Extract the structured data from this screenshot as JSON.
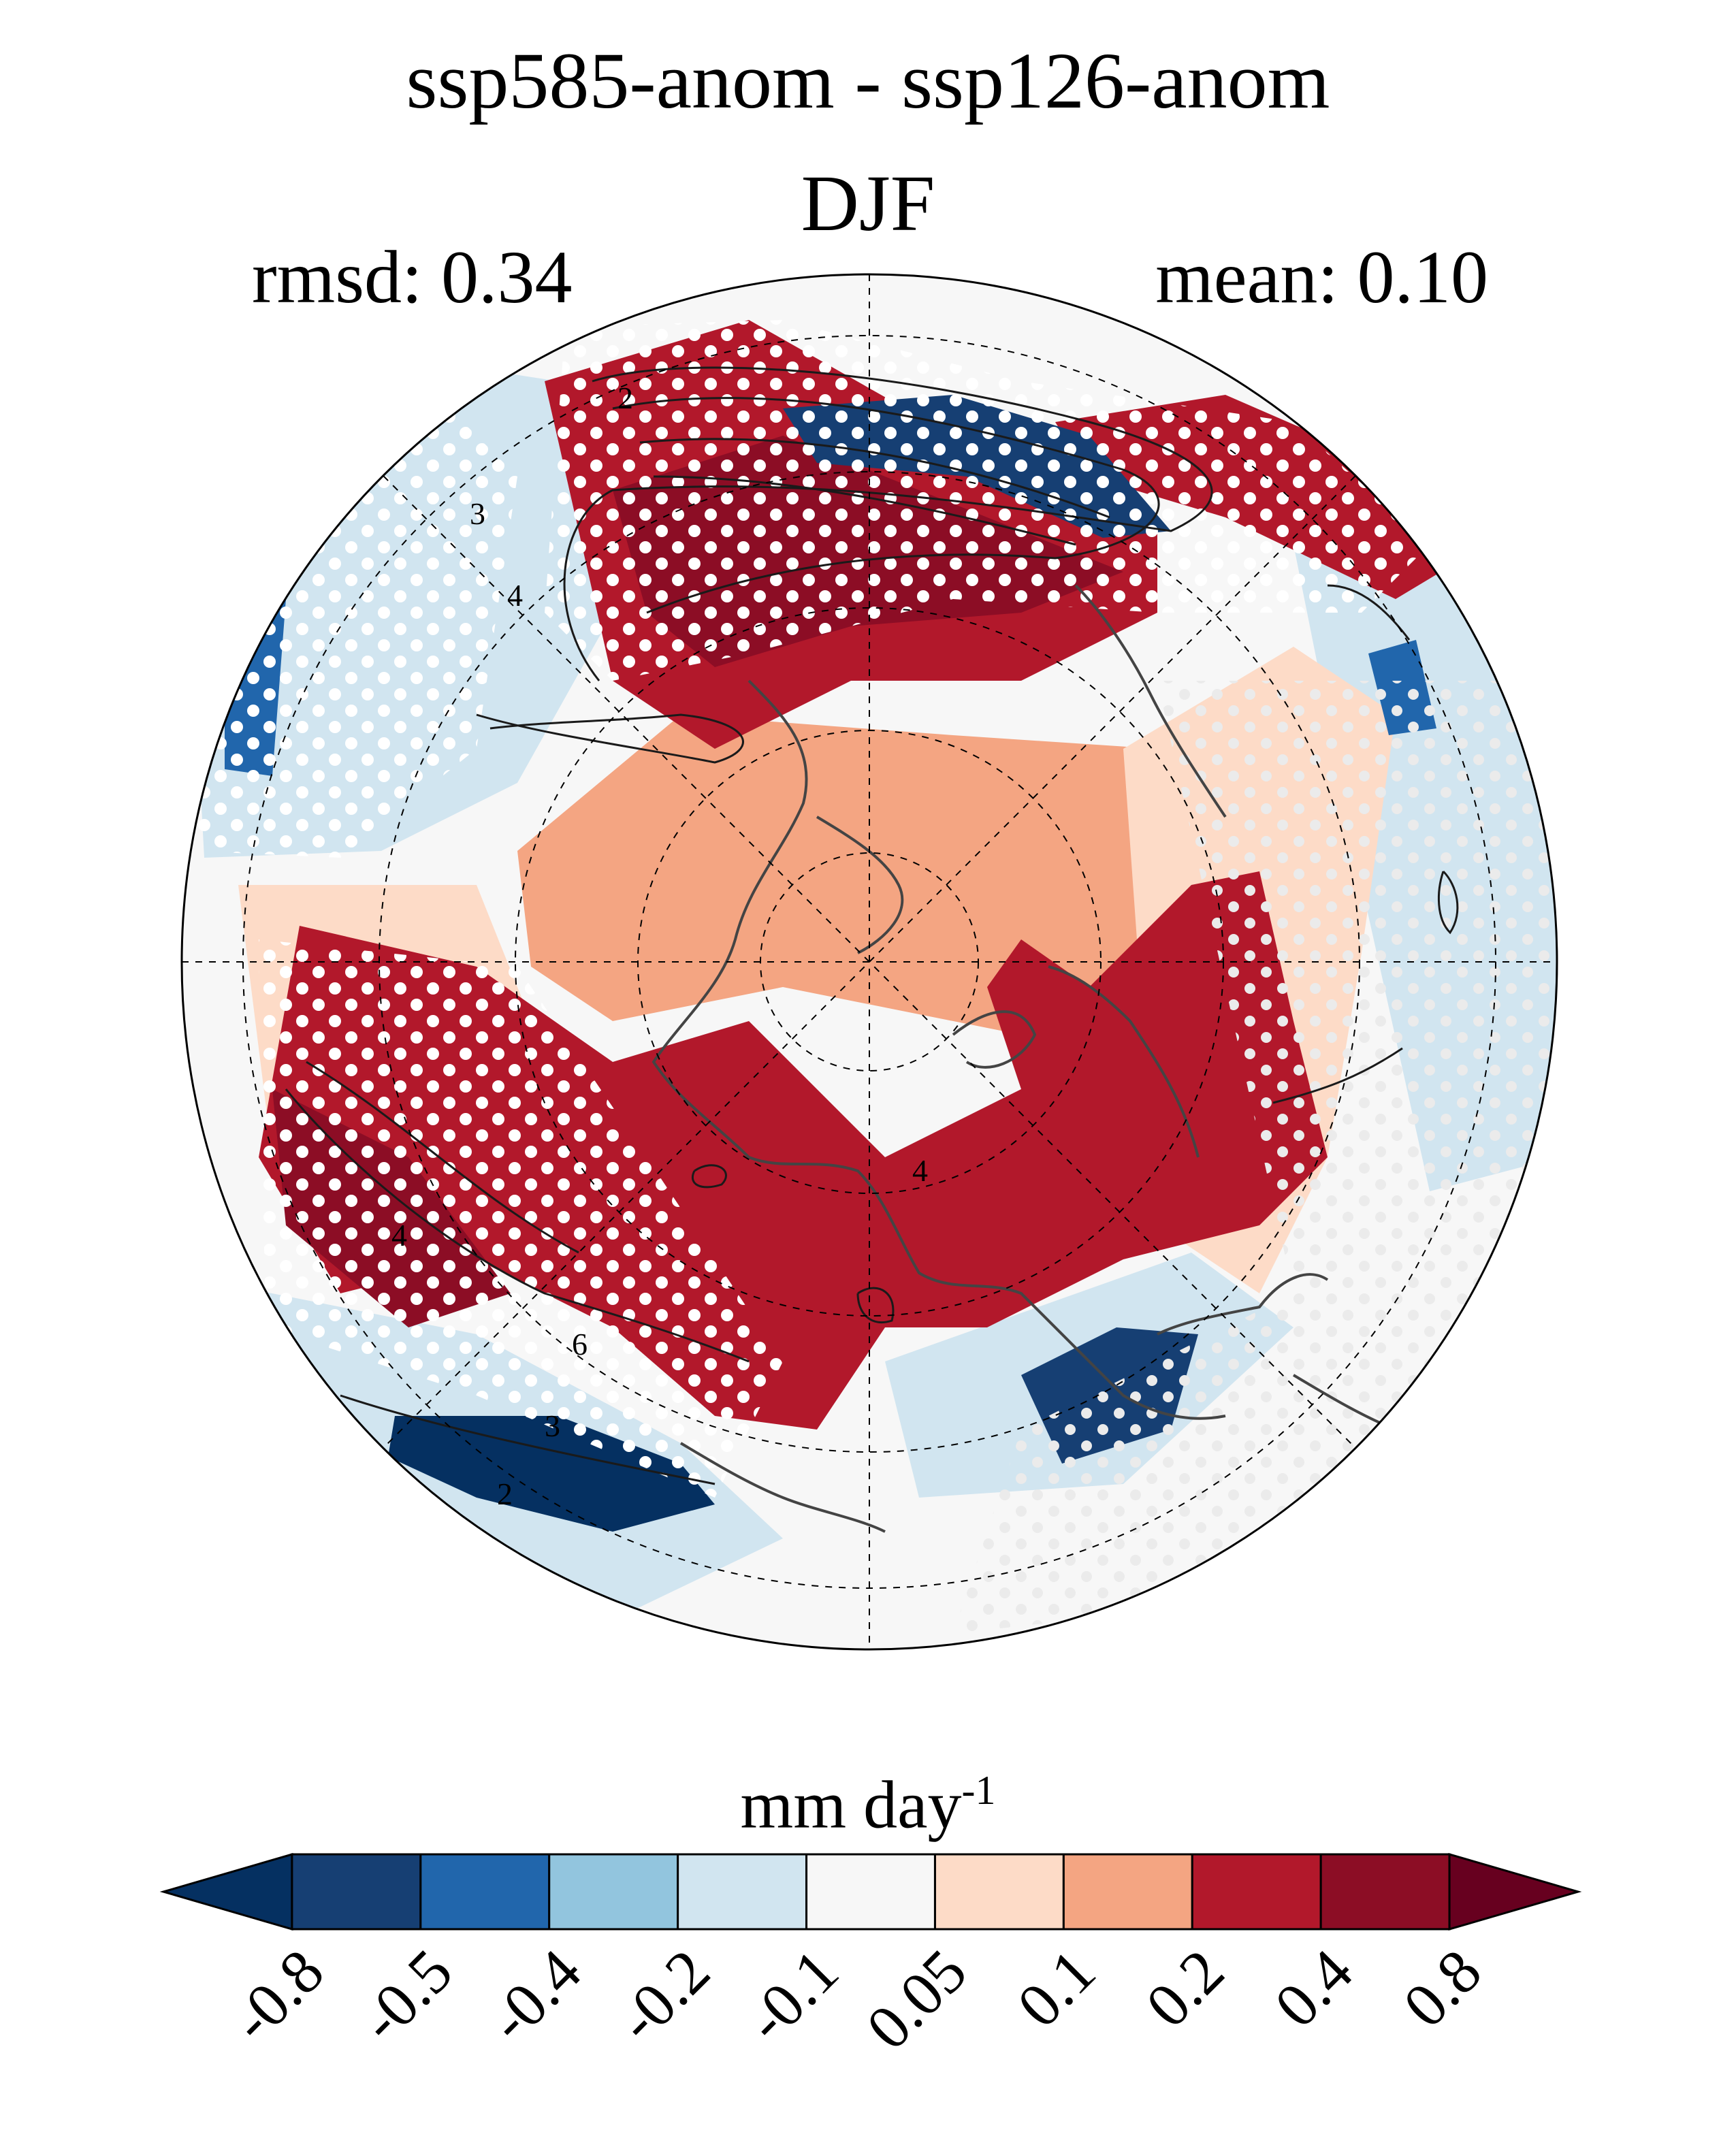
{
  "figure": {
    "title": "ssp585-anom - ssp126-anom",
    "season": "DJF",
    "rmsd_label": "rmsd: 0.34",
    "mean_label": "mean: 0.10"
  },
  "map": {
    "projection": "north polar stereographic",
    "contour_labels": [
      "2",
      "3",
      "4",
      "2",
      "3",
      "4",
      "6",
      "4"
    ]
  },
  "colorbar": {
    "title": "mm day",
    "title_superscript": "-1",
    "colors": [
      "#053061",
      "#163f73",
      "#2166ac",
      "#92c5de",
      "#d1e5f0",
      "#f7f7f7",
      "#fddbc7",
      "#f4a582",
      "#b2182b",
      "#8c0d25",
      "#67001f"
    ],
    "tick_labels": [
      "-0.8",
      "-0.5",
      "-0.4",
      "-0.2",
      "-0.1",
      "0.05",
      "0.1",
      "0.2",
      "0.4",
      "0.8"
    ]
  }
}
